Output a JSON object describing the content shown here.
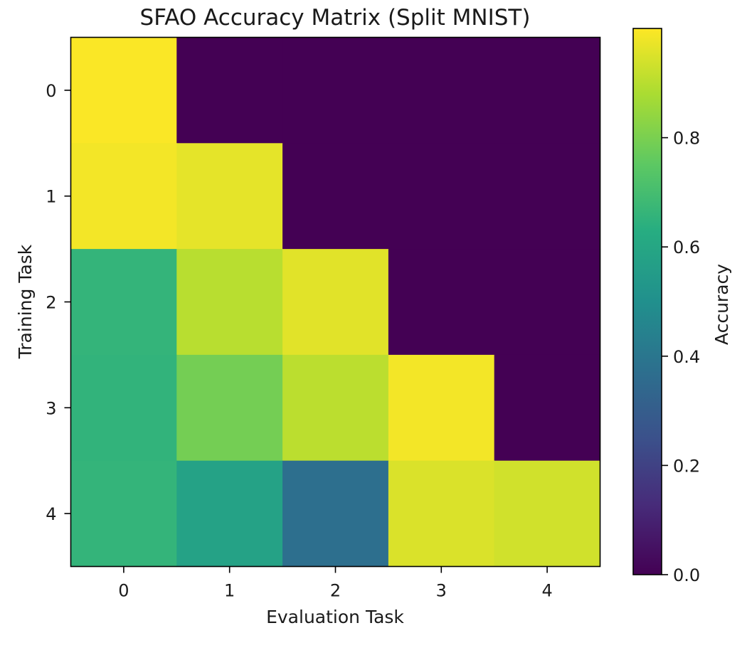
{
  "chart_data": {
    "type": "heatmap",
    "title": "SFAO Accuracy Matrix (Split MNIST)",
    "xlabel": "Evaluation Task",
    "ylabel": "Training Task",
    "x_categories": [
      "0",
      "1",
      "2",
      "3",
      "4"
    ],
    "y_categories": [
      "0",
      "1",
      "2",
      "3",
      "4"
    ],
    "values": [
      [
        0.995,
        0.0,
        0.0,
        0.0,
        0.0
      ],
      [
        0.985,
        0.965,
        0.0,
        0.0,
        0.0
      ],
      [
        0.66,
        0.9,
        0.96,
        0.0,
        0.0
      ],
      [
        0.655,
        0.79,
        0.905,
        0.985,
        0.0
      ],
      [
        0.66,
        0.58,
        0.37,
        0.95,
        0.935
      ]
    ],
    "colormap": "viridis",
    "colorbar": {
      "label": "Accuracy",
      "range": [
        0.0,
        1.0
      ],
      "ticks": [
        0.0,
        0.2,
        0.4,
        0.6,
        0.8
      ],
      "tick_labels": [
        "0.0",
        "0.2",
        "0.4",
        "0.6",
        "0.8"
      ]
    },
    "grid": false
  }
}
